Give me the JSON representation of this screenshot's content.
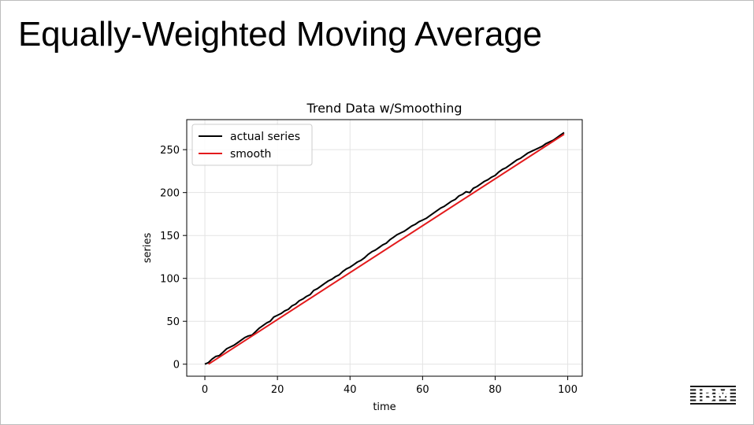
{
  "slide": {
    "title": "Equally-Weighted Moving Average",
    "logo_text": "IBM"
  },
  "chart_data": {
    "type": "line",
    "title": "Trend Data w/Smoothing",
    "xlabel": "time",
    "ylabel": "series",
    "xlim": [
      -5,
      104
    ],
    "ylim": [
      -14,
      285
    ],
    "xticks": [
      0,
      20,
      40,
      60,
      80,
      100
    ],
    "yticks": [
      0,
      50,
      100,
      150,
      200,
      250
    ],
    "grid": true,
    "legend_position": "top-left",
    "series": [
      {
        "name": "actual series",
        "color": "#000000",
        "x": [
          0,
          1,
          2,
          3,
          4,
          5,
          6,
          7,
          8,
          9,
          10,
          11,
          12,
          13,
          14,
          15,
          16,
          17,
          18,
          19,
          20,
          21,
          22,
          23,
          24,
          25,
          26,
          27,
          28,
          29,
          30,
          31,
          32,
          33,
          34,
          35,
          36,
          37,
          38,
          39,
          40,
          41,
          42,
          43,
          44,
          45,
          46,
          47,
          48,
          49,
          50,
          51,
          52,
          53,
          54,
          55,
          56,
          57,
          58,
          59,
          60,
          61,
          62,
          63,
          64,
          65,
          66,
          67,
          68,
          69,
          70,
          71,
          72,
          73,
          74,
          75,
          76,
          77,
          78,
          79,
          80,
          81,
          82,
          83,
          84,
          85,
          86,
          87,
          88,
          89,
          90,
          91,
          92,
          93,
          94,
          95,
          96,
          97,
          98,
          99
        ],
        "values": [
          0,
          2,
          6,
          9,
          10,
          14,
          18,
          20,
          22,
          25,
          28,
          31,
          33,
          34,
          38,
          42,
          45,
          48,
          50,
          55,
          57,
          59,
          62,
          64,
          68,
          70,
          74,
          76,
          79,
          81,
          86,
          88,
          91,
          94,
          97,
          99,
          102,
          104,
          108,
          111,
          113,
          116,
          119,
          121,
          124,
          128,
          131,
          133,
          136,
          139,
          141,
          145,
          148,
          151,
          153,
          155,
          158,
          161,
          163,
          166,
          168,
          170,
          173,
          176,
          179,
          182,
          184,
          187,
          190,
          192,
          196,
          198,
          201,
          200,
          205,
          207,
          210,
          213,
          215,
          218,
          220,
          224,
          227,
          229,
          232,
          235,
          238,
          240,
          243,
          246,
          248,
          250,
          252,
          254,
          257,
          259,
          261,
          264,
          267,
          270
        ]
      },
      {
        "name": "smooth",
        "color": "#e31a1c",
        "x": [
          1,
          99
        ],
        "values": [
          0,
          268
        ]
      }
    ]
  }
}
